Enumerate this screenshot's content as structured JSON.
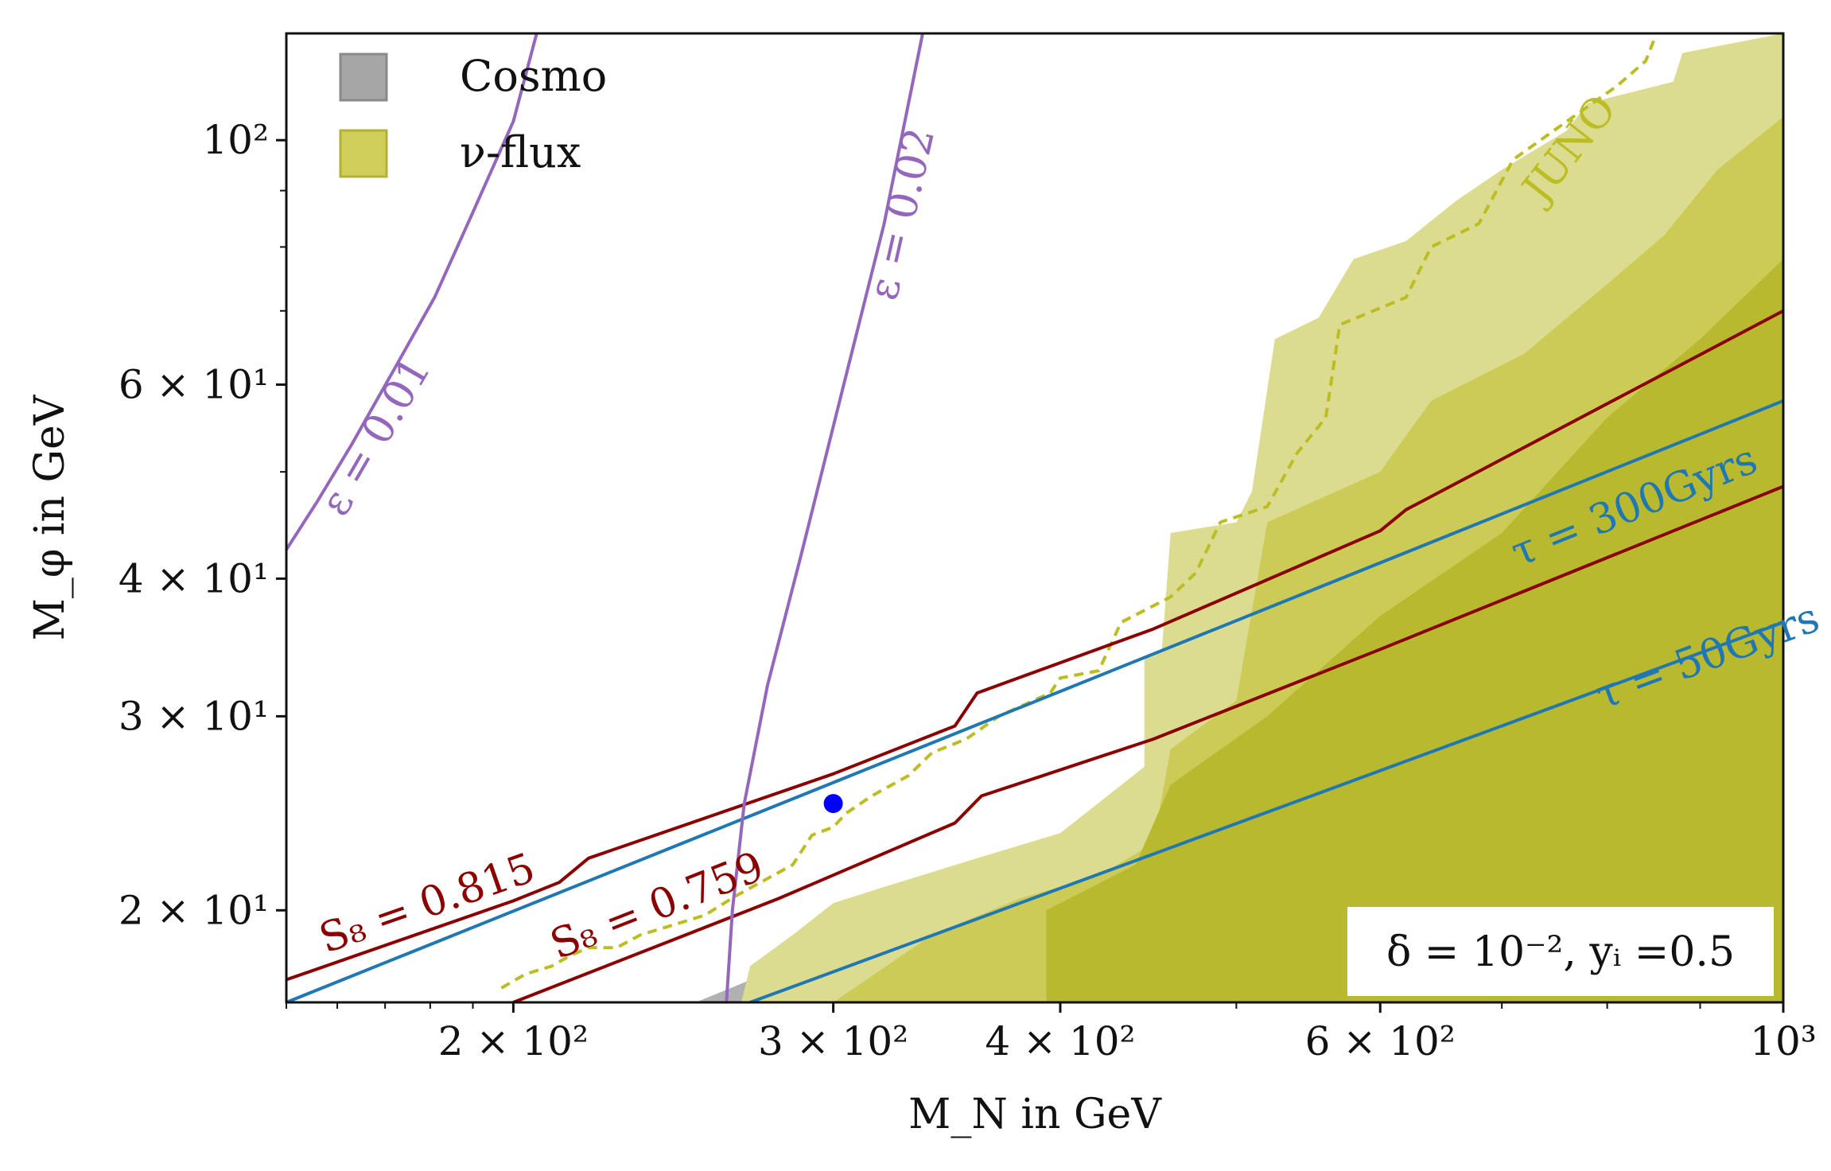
{
  "chart_data": {
    "type": "area",
    "xlabel": "M_N in GeV",
    "ylabel": "M_φ in GeV",
    "x_scale": "log",
    "y_scale": "log",
    "xlim": [
      150,
      1000
    ],
    "ylim": [
      16.5,
      125
    ],
    "x_ticks": [
      {
        "value": 200,
        "label": "2 × 10²"
      },
      {
        "value": 300,
        "label": "3 × 10²"
      },
      {
        "value": 400,
        "label": "4 × 10²"
      },
      {
        "value": 600,
        "label": "6 × 10²"
      },
      {
        "value": 1000,
        "label": "10³"
      }
    ],
    "y_ticks": [
      {
        "value": 20,
        "label": "2 × 10¹"
      },
      {
        "value": 30,
        "label": "3 × 10¹"
      },
      {
        "value": 40,
        "label": "4 × 10¹"
      },
      {
        "value": 60,
        "label": "6 × 10¹"
      },
      {
        "value": 100,
        "label": "10²"
      }
    ],
    "legend": {
      "placement": "top-left",
      "items": [
        {
          "label": "Cosmo",
          "color": "#a6a6a6"
        },
        {
          "label": "ν-flux",
          "color": "#cfcf5a"
        }
      ]
    },
    "colors": {
      "cosmo": "#a8a8a8",
      "flux_light": "#dcdc90",
      "flux_mid": "#cbcb55",
      "flux_dark": "#b9b92f",
      "juno": "#bcbd22",
      "s8": "#8b0000",
      "tau": "#1f77b4",
      "epsilon": "#9467bd",
      "benchmark": "#0000ff"
    },
    "shaded_regions": [
      {
        "name": "Cosmo",
        "points": [
          [
            252,
            16.5
          ],
          [
            268,
            17.2
          ],
          [
            280,
            17.8
          ],
          [
            300,
            18.6
          ],
          [
            330,
            19.8
          ],
          [
            370,
            21.0
          ],
          [
            393,
            21.6
          ],
          [
            393,
            16.5
          ]
        ]
      },
      {
        "name": "ν-flux",
        "points": [
          [
            267,
            16.5
          ],
          [
            270,
            17.8
          ],
          [
            285,
            19.0
          ],
          [
            300,
            20.3
          ],
          [
            320,
            21.0
          ],
          [
            360,
            22.3
          ],
          [
            400,
            23.5
          ],
          [
            445,
            27.0
          ],
          [
            445,
            34.0
          ],
          [
            455,
            34.5
          ],
          [
            460,
            44.0
          ],
          [
            500,
            45.0
          ],
          [
            510,
            48.0
          ],
          [
            525,
            66.0
          ],
          [
            555,
            69.0
          ],
          [
            580,
            78.0
          ],
          [
            620,
            81.0
          ],
          [
            660,
            88.0
          ],
          [
            700,
            94.0
          ],
          [
            760,
            102.0
          ],
          [
            780,
            108.0
          ],
          [
            870,
            113.0
          ],
          [
            880,
            120.0
          ],
          [
            1000,
            125.0
          ],
          [
            1000,
            16.5
          ]
        ]
      },
      {
        "name": "ν-flux",
        "points": [
          [
            300,
            16.5
          ],
          [
            340,
            19.0
          ],
          [
            380,
            20.5
          ],
          [
            420,
            21.5
          ],
          [
            450,
            23.0
          ],
          [
            460,
            28.0
          ],
          [
            500,
            31.0
          ],
          [
            520,
            45.0
          ],
          [
            600,
            50.0
          ],
          [
            640,
            58.0
          ],
          [
            720,
            64.0
          ],
          [
            800,
            74.0
          ],
          [
            860,
            82.0
          ],
          [
            920,
            94.0
          ],
          [
            1000,
            105.0
          ],
          [
            1000,
            16.5
          ]
        ]
      },
      {
        "name": "ν-flux",
        "points": [
          [
            393,
            16.5
          ],
          [
            393,
            20.0
          ],
          [
            440,
            22.0
          ],
          [
            460,
            26.0
          ],
          [
            520,
            30.0
          ],
          [
            600,
            37.0
          ],
          [
            700,
            44.0
          ],
          [
            800,
            56.0
          ],
          [
            900,
            66.0
          ],
          [
            1000,
            78.0
          ],
          [
            1000,
            16.5
          ]
        ]
      }
    ],
    "series": [
      {
        "name": "JUNO",
        "style": "dashed",
        "points": [
          [
            197,
            17.0
          ],
          [
            203,
            17.5
          ],
          [
            210,
            17.8
          ],
          [
            215,
            18.2
          ],
          [
            220,
            18.5
          ],
          [
            228,
            18.5
          ],
          [
            235,
            19.0
          ],
          [
            245,
            19.4
          ],
          [
            255,
            19.8
          ],
          [
            265,
            20.6
          ],
          [
            275,
            21.3
          ],
          [
            285,
            22.0
          ],
          [
            292,
            23.4
          ],
          [
            300,
            23.8
          ],
          [
            305,
            24.5
          ],
          [
            315,
            25.4
          ],
          [
            330,
            26.5
          ],
          [
            340,
            27.8
          ],
          [
            355,
            28.6
          ],
          [
            370,
            30.0
          ],
          [
            395,
            31.5
          ],
          [
            400,
            32.5
          ],
          [
            420,
            33.0
          ],
          [
            432,
            36.5
          ],
          [
            460,
            38.5
          ],
          [
            475,
            40.5
          ],
          [
            490,
            45.0
          ],
          [
            520,
            46.5
          ],
          [
            540,
            52.0
          ],
          [
            560,
            56.0
          ],
          [
            570,
            68.0
          ],
          [
            620,
            72.0
          ],
          [
            640,
            80.0
          ],
          [
            680,
            84.0
          ],
          [
            710,
            96.0
          ],
          [
            760,
            104.0
          ],
          [
            810,
            112.0
          ],
          [
            840,
            118.0
          ],
          [
            850,
            124.0
          ]
        ]
      },
      {
        "name": "S₈ = 0.815",
        "points": [
          [
            150,
            17.3
          ],
          [
            200,
            20.4
          ],
          [
            212,
            21.2
          ],
          [
            220,
            22.3
          ],
          [
            300,
            26.6
          ],
          [
            350,
            29.4
          ],
          [
            360,
            31.5
          ],
          [
            450,
            36.0
          ],
          [
            600,
            44.2
          ],
          [
            620,
            46.2
          ],
          [
            1000,
            70.0
          ]
        ]
      },
      {
        "name": "S₈ = 0.759",
        "points": [
          [
            200,
            16.5
          ],
          [
            280,
            20.5
          ],
          [
            350,
            24.0
          ],
          [
            362,
            25.4
          ],
          [
            450,
            28.6
          ],
          [
            600,
            34.5
          ],
          [
            1000,
            48.5
          ]
        ]
      },
      {
        "name": "τ = 300Gyrs",
        "points": [
          [
            150,
            16.5
          ],
          [
            1000,
            58.0
          ]
        ]
      },
      {
        "name": "τ = 50Gyrs",
        "points": [
          [
            270,
            16.5
          ],
          [
            1000,
            36.5
          ]
        ]
      },
      {
        "name": "ε = 0.01",
        "points": [
          [
            150,
            42.5
          ],
          [
            156,
            47.0
          ],
          [
            163,
            53.0
          ],
          [
            172,
            62.0
          ],
          [
            181,
            72.0
          ],
          [
            190,
            86.0
          ],
          [
            200,
            104.0
          ],
          [
            206,
            125.0
          ]
        ]
      },
      {
        "name": "ε = 0.02",
        "points": [
          [
            262,
            16.5
          ],
          [
            264,
            20.0
          ],
          [
            268,
            25.0
          ],
          [
            276,
            32.0
          ],
          [
            288,
            42.0
          ],
          [
            304,
            60.0
          ],
          [
            320,
            84.0
          ],
          [
            336,
            125.0
          ]
        ]
      }
    ],
    "benchmark_point": {
      "x": 300,
      "y": 25.0
    },
    "annotation": "δ = 10⁻², yᵢ =0.5"
  }
}
